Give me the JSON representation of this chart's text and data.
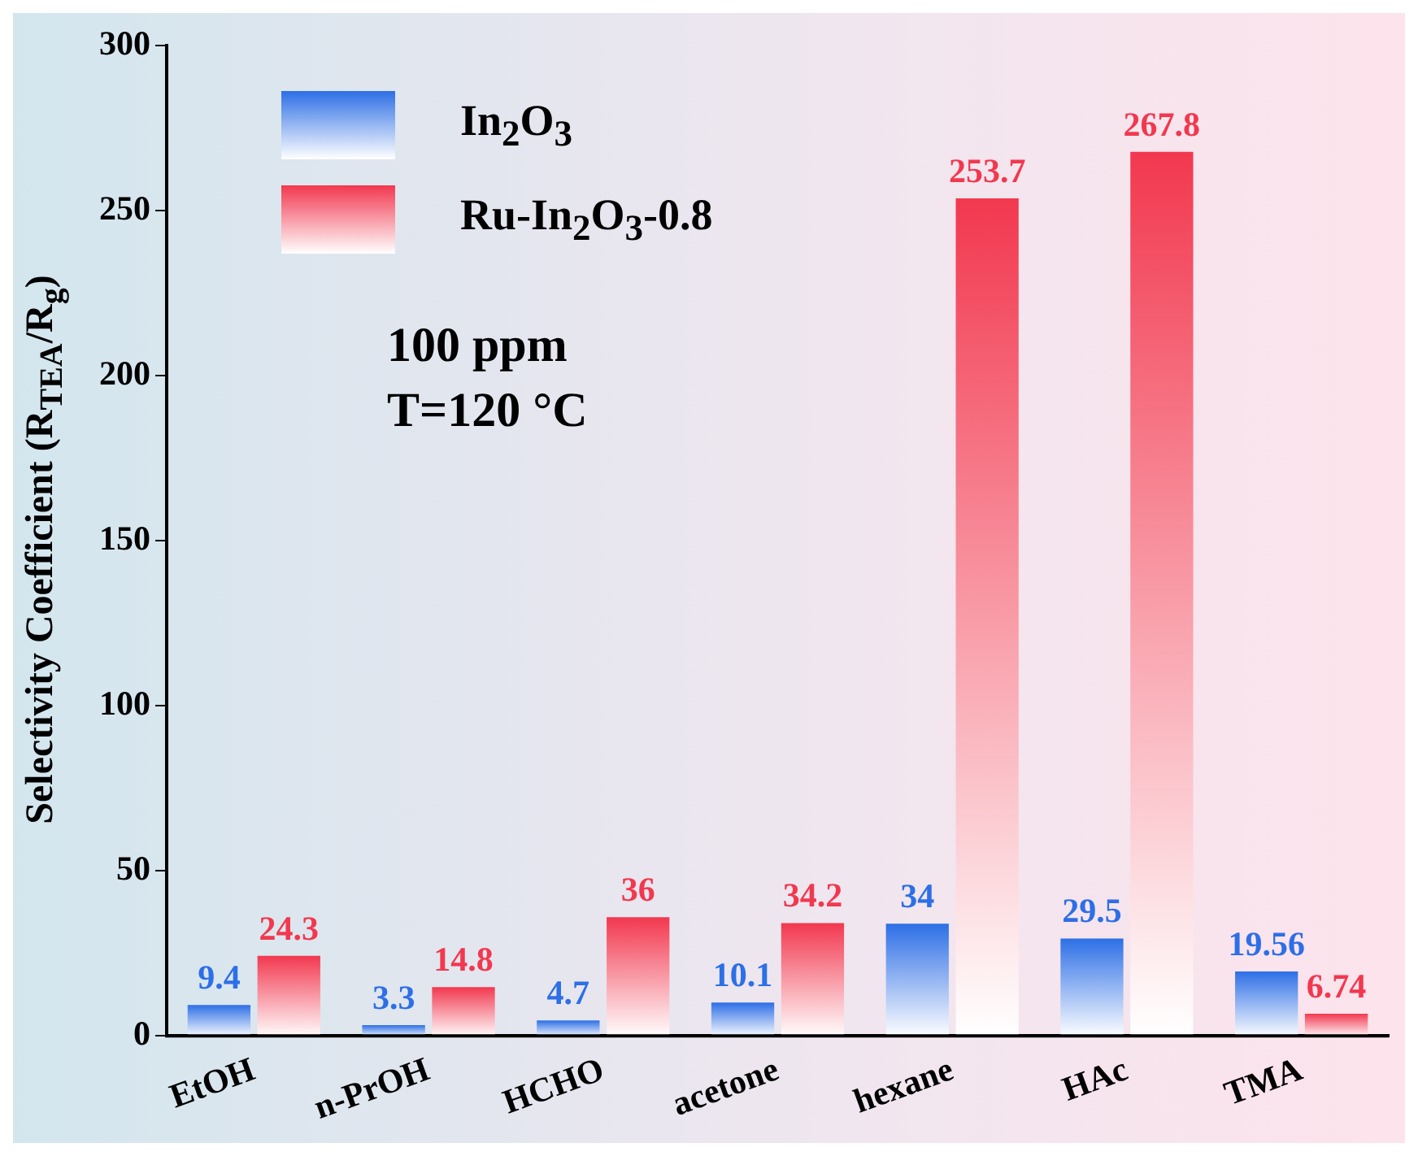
{
  "chart_data": {
    "type": "bar",
    "categories": [
      "EtOH",
      "n-PrOH",
      "HCHO",
      "acetone",
      "hexane",
      "HAc",
      "TMA"
    ],
    "series": [
      {
        "name": "In$_{2}$O$_{3}$",
        "color": "#2d6fe6",
        "values": [
          9.4,
          3.3,
          4.7,
          10.1,
          34,
          29.5,
          19.56
        ]
      },
      {
        "name": "Ru-In$_{2}$O$_{3}$-0.8",
        "color": "#f2384f",
        "values": [
          24.3,
          14.8,
          36,
          34.2,
          253.7,
          267.8,
          6.74
        ]
      }
    ],
    "ylabel": "Selectivity Coefficient (R$_{TEA}$/R$_{g}$)",
    "ylim": [
      0,
      300
    ],
    "yticks": [
      0,
      50,
      100,
      150,
      200,
      250,
      300
    ],
    "annotations": [
      "100 ppm",
      "T=120 °C"
    ],
    "data_labels": true,
    "grid": false,
    "legend": "top left"
  }
}
